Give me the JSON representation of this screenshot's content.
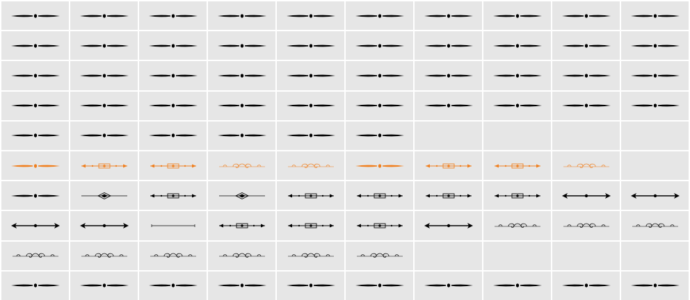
{
  "grid": {
    "colors": {
      "cell_background": "#e6e6e6",
      "gap": "#ffffff",
      "ink": "#000000",
      "accent": "#f08020"
    },
    "rows": [
      [
        "spindle",
        "spindle",
        "spindle",
        "spindle",
        "spindle",
        "spindle",
        "spindle",
        "spindle",
        "spindle",
        "spindle"
      ],
      [
        "spindle",
        "spindle",
        "spindle",
        "spindle",
        "spindle",
        "spindle",
        "spindle",
        "spindle",
        "spindle",
        "spindle"
      ],
      [
        "spindle",
        "spindle",
        "spindle",
        "spindle",
        "spindle",
        "spindle",
        "spindle",
        "spindle",
        "spindle",
        "spindle"
      ],
      [
        "spindle",
        "spindle",
        "spindle",
        "spindle",
        "spindle",
        "spindle",
        "spindle",
        "spindle",
        "spindle",
        "spindle"
      ],
      [
        "spindle",
        "spindle",
        "spindle",
        "spindle",
        "spindle",
        "spindle",
        "empty",
        "empty",
        "empty",
        "empty"
      ],
      [
        "spindle-orange",
        "ornate-rule-orange",
        "ornate-rule-orange",
        "scroll-orange",
        "scroll-orange",
        "spindle-orange",
        "ornate-rule-orange",
        "ornate-rule-orange",
        "scroll-orange",
        "empty"
      ],
      [
        "spindle",
        "diamond-rule",
        "ornate-rule",
        "diamond-rule",
        "ornate-rule",
        "ornate-rule",
        "ornate-rule",
        "ornate-rule",
        "arrow-rule",
        "arrow-rule"
      ],
      [
        "arrow-rule",
        "arrow-rule",
        "thin-rule",
        "ornate-rule",
        "ornate-rule",
        "ornate-rule",
        "arrow-rule",
        "scroll",
        "scroll",
        "scroll"
      ],
      [
        "scroll",
        "scroll",
        "scroll",
        "scroll",
        "scroll",
        "scroll",
        "empty",
        "empty",
        "empty",
        "empty"
      ],
      [
        "spindle",
        "spindle",
        "spindle",
        "spindle",
        "spindle",
        "spindle",
        "spindle",
        "spindle",
        "spindle",
        "spindle"
      ]
    ]
  }
}
